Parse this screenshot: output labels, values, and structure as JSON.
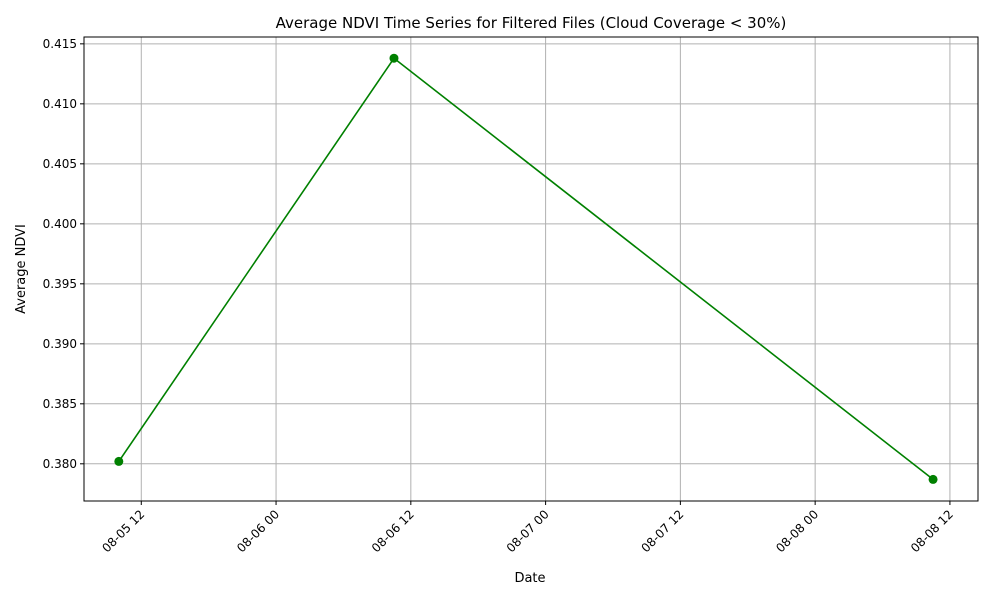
{
  "chart_data": {
    "type": "line",
    "title": "Average NDVI Time Series for Filtered Files (Cloud Coverage < 30%)",
    "xlabel": "Date",
    "ylabel": "Average NDVI",
    "grid": true,
    "x_tick_labels": [
      "08-05 12",
      "08-06 00",
      "08-06 12",
      "08-07 00",
      "08-07 12",
      "08-08 00",
      "08-08 12"
    ],
    "x_ticks": [
      "2023-08-05T12:00",
      "2023-08-06T00:00",
      "2023-08-06T12:00",
      "2023-08-07T00:00",
      "2023-08-07T12:00",
      "2023-08-08T00:00",
      "2023-08-08T12:00"
    ],
    "xlim": [
      "2023-08-05T06:54",
      "2023-08-08T14:30"
    ],
    "y_tick_labels": [
      "0.380",
      "0.385",
      "0.390",
      "0.395",
      "0.400",
      "0.405",
      "0.410",
      "0.415"
    ],
    "y_ticks": [
      0.38,
      0.385,
      0.39,
      0.395,
      0.4,
      0.405,
      0.41,
      0.415
    ],
    "ylim": [
      0.3769,
      0.41557
    ],
    "series": [
      {
        "color": "#008000",
        "marker": "circle",
        "x": [
          "2023-08-05T10:00",
          "2023-08-06T10:30",
          "2023-08-08T10:30"
        ],
        "y": [
          0.3802,
          0.4138,
          0.3787
        ]
      }
    ]
  }
}
